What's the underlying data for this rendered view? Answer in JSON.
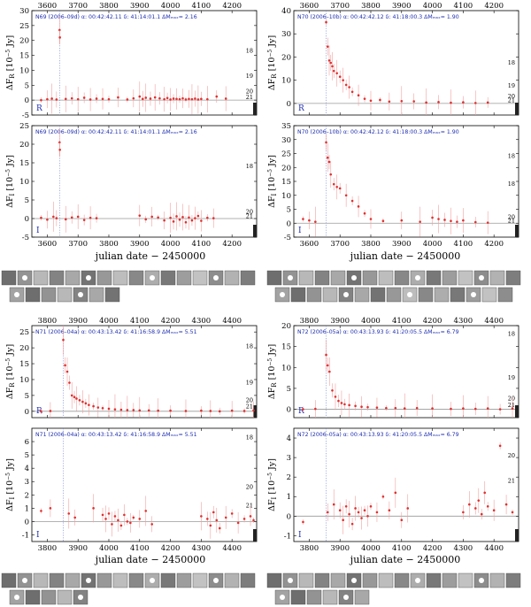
{
  "figure": {
    "x_axis_label": "julian date − 2450000",
    "y_axis_label_R_main": "ΔF",
    "y_axis_label_R_sub": "R",
    "y_axis_label_I_main": "ΔF",
    "y_axis_label_I_sub": "I",
    "y_axis_unit": "[10",
    "y_axis_unit_exp": "−5",
    "y_axis_unit_end": " Jy]",
    "colors": {
      "points": "#e03030",
      "info_text": "#1f2fb0",
      "axis": "#000000",
      "zero_line": "#999999"
    }
  },
  "chart_data": [
    {
      "id": "N69-R",
      "type": "scatter",
      "band": "R",
      "info": "N69 (2006–09d)   α: 00:42:42.11  δ: 41:14:01.1   ΔMₘₐₓ= 2.16",
      "xlim": [
        3550,
        4280
      ],
      "ylim": [
        -5,
        30
      ],
      "xticks": [
        3600,
        3700,
        3800,
        3900,
        4000,
        4100,
        4200
      ],
      "xticklabels_top": [
        "3600",
        "3700",
        "3800",
        "3900",
        "4000",
        "4100",
        "4200"
      ],
      "yticks": [
        -5,
        0,
        5,
        10,
        15,
        20,
        25,
        30
      ],
      "mag_labels": [
        {
          "y": 16.5,
          "t": "18"
        },
        {
          "y": 8.0,
          "t": "19"
        },
        {
          "y": 2.8,
          "t": "20"
        },
        {
          "y": 1.0,
          "t": "21"
        }
      ],
      "marker_x": 3640,
      "x": [
        3580,
        3600,
        3615,
        3630,
        3640,
        3641,
        3660,
        3680,
        3700,
        3720,
        3740,
        3760,
        3780,
        3800,
        3830,
        3860,
        3880,
        3900,
        3910,
        3920,
        3935,
        3950,
        3965,
        3980,
        3990,
        4000,
        4010,
        4020,
        4030,
        4040,
        4050,
        4060,
        4070,
        4080,
        4090,
        4100,
        4120,
        4150,
        4180
      ],
      "y": [
        0.0,
        0.3,
        0.5,
        0.2,
        23.5,
        21.0,
        0.4,
        0.6,
        0.3,
        0.8,
        0.2,
        0.5,
        0.4,
        0.3,
        0.9,
        0.2,
        0.6,
        1.2,
        0.4,
        0.8,
        0.5,
        0.9,
        0.6,
        0.3,
        0.7,
        0.2,
        0.5,
        0.4,
        0.3,
        0.6,
        0.2,
        0.4,
        0.3,
        0.5,
        0.2,
        0.4,
        0.3,
        1.2,
        0.5
      ]
    },
    {
      "id": "N70-R",
      "type": "scatter",
      "band": "R",
      "info": "N70 (2006–10b)   α: 00:42:42.12  δ: 41:18:00.3   ΔMₘₐₓ= 1.90",
      "xlim": [
        3550,
        4280
      ],
      "ylim": [
        -5,
        40
      ],
      "xticks": [
        3600,
        3700,
        3800,
        3900,
        4000,
        4100,
        4200
      ],
      "xticklabels_top": [
        "3600",
        "3700",
        "3800",
        "3900",
        "4000",
        "4100",
        "4200"
      ],
      "yticks": [
        0,
        10,
        20,
        30,
        40
      ],
      "mag_labels": [
        {
          "y": 17.5,
          "t": "18"
        },
        {
          "y": 7.5,
          "t": "19"
        },
        {
          "y": 3.0,
          "t": "20"
        },
        {
          "y": 1.2,
          "t": "21"
        }
      ],
      "marker_x": 3655,
      "x": [
        3655,
        3660,
        3665,
        3670,
        3675,
        3680,
        3690,
        3700,
        3710,
        3720,
        3730,
        3740,
        3760,
        3780,
        3800,
        3830,
        3860,
        3900,
        3940,
        3980,
        4020,
        4060,
        4100,
        4140,
        4180
      ],
      "y": [
        35.0,
        24.5,
        18.5,
        17.5,
        16.0,
        14.0,
        13.0,
        11.5,
        10.0,
        8.0,
        7.0,
        5.0,
        3.5,
        2.0,
        1.2,
        1.5,
        0.8,
        1.0,
        0.9,
        0.4,
        0.6,
        0.3,
        0.5,
        0.2,
        0.4
      ]
    },
    {
      "id": "N69-I",
      "type": "scatter",
      "band": "I",
      "info": "N69 (2006–09d)   α: 00:42:42.11  δ: 41:14:01.1   ΔMₘₐₓ= 2.16",
      "xlim": [
        3550,
        4280
      ],
      "ylim": [
        -5,
        25
      ],
      "xticks": [
        3600,
        3700,
        3800,
        3900,
        4000,
        4100,
        4200
      ],
      "xticklabels_bottom": [
        "3600",
        "3700",
        "3800",
        "3900",
        "4000",
        "4100",
        "4200"
      ],
      "yticks": [
        -5,
        0,
        5,
        10,
        15,
        20,
        25
      ],
      "mag_labels": [
        {
          "y": 14.0,
          "t": "18"
        },
        {
          "y": 1.8,
          "t": "20"
        },
        {
          "y": 0.6,
          "t": "21"
        }
      ],
      "marker_x": 3640,
      "x": [
        3580,
        3600,
        3620,
        3630,
        3640,
        3641,
        3660,
        3680,
        3700,
        3720,
        3740,
        3760,
        3900,
        3920,
        3940,
        3960,
        3980,
        4000,
        4010,
        4020,
        4030,
        4040,
        4050,
        4060,
        4070,
        4080,
        4090,
        4100,
        4120,
        4140
      ],
      "y": [
        0.2,
        -0.3,
        0.5,
        0.1,
        20.5,
        18.5,
        -0.2,
        0.3,
        0.5,
        -0.4,
        0.2,
        0.1,
        0.8,
        -0.2,
        0.5,
        0.3,
        -0.5,
        0.2,
        -0.8,
        0.6,
        -0.3,
        0.4,
        -1.0,
        0.3,
        -0.5,
        0.1,
        0.7,
        -0.6,
        0.2,
        0.1
      ]
    },
    {
      "id": "N70-I",
      "type": "scatter",
      "band": "I",
      "info": "N70 (2006–10b)   α: 00:42:42.12  δ: 41:18:00.3   ΔMₘₐₓ= 1.90",
      "xlim": [
        3550,
        4280
      ],
      "ylim": [
        -5,
        35
      ],
      "xticks": [
        3600,
        3700,
        3800,
        3900,
        4000,
        4100,
        4200
      ],
      "xticklabels_bottom": [
        "3600",
        "3700",
        "3800",
        "3900",
        "4000",
        "4100",
        "4200"
      ],
      "yticks": [
        -5,
        0,
        5,
        10,
        15,
        20,
        25,
        30,
        35
      ],
      "mag_labels": [
        {
          "y": 24.0,
          "t": "18"
        },
        {
          "y": 14.0,
          "t": "18"
        },
        {
          "y": 2.2,
          "t": "20"
        },
        {
          "y": 0.8,
          "t": "21"
        }
      ],
      "marker_x": 3655,
      "x": [
        3580,
        3600,
        3620,
        3655,
        3660,
        3665,
        3670,
        3680,
        3690,
        3700,
        3720,
        3740,
        3760,
        3780,
        3800,
        3840,
        3900,
        3960,
        4000,
        4020,
        4040,
        4060,
        4080,
        4100,
        4140,
        4180
      ],
      "y": [
        1.5,
        1.0,
        0.5,
        29.0,
        23.5,
        22.0,
        17.5,
        14.0,
        13.0,
        12.5,
        10.0,
        8.0,
        6.0,
        3.5,
        1.5,
        0.8,
        1.0,
        0.5,
        2.0,
        1.5,
        1.2,
        0.8,
        0.5,
        1.0,
        0.4,
        0.2
      ]
    },
    {
      "id": "N71-R",
      "type": "scatter",
      "band": "R",
      "info": "N71 (2006–04a)   α: 00:43:13.42  δ: 41:16:58.9   ΔMₘₐₓ= 5.51",
      "xlim": [
        3750,
        4480
      ],
      "ylim": [
        -2,
        27
      ],
      "xticks": [
        3800,
        3900,
        4000,
        4100,
        4200,
        4300,
        4400
      ],
      "xticklabels_top": [
        "3800",
        "3900",
        "4000",
        "4100",
        "4200",
        "4300",
        "4400"
      ],
      "yticks": [
        0,
        5,
        10,
        15,
        20,
        25
      ],
      "mag_labels": [
        {
          "y": 20.5,
          "t": "18"
        },
        {
          "y": 9.0,
          "t": "19"
        },
        {
          "y": 3.5,
          "t": "20"
        },
        {
          "y": 1.5,
          "t": "21"
        }
      ],
      "marker_x": 3852,
      "x": [
        3780,
        3810,
        3852,
        3858,
        3865,
        3872,
        3880,
        3888,
        3895,
        3905,
        3915,
        3925,
        3935,
        3950,
        3965,
        3980,
        4000,
        4020,
        4040,
        4060,
        4080,
        4100,
        4130,
        4160,
        4200,
        4250,
        4300,
        4330,
        4360,
        4400,
        4440,
        4470
      ],
      "y": [
        0.0,
        0.1,
        22.5,
        14.5,
        12.5,
        9.0,
        5.0,
        4.5,
        4.0,
        3.5,
        3.0,
        2.5,
        2.0,
        1.6,
        1.2,
        1.0,
        0.8,
        0.6,
        0.5,
        0.4,
        0.4,
        0.3,
        0.3,
        0.2,
        0.2,
        0.1,
        0.2,
        0.1,
        0.0,
        0.2,
        0.1,
        0.3
      ]
    },
    {
      "id": "N72-R",
      "type": "scatter",
      "band": "R",
      "info": "N72 (2006–05a)   α: 00:43:13.93  δ: 41:20:05.5   ΔMₘₐₓ= 6.79",
      "xlim": [
        3750,
        4480
      ],
      "ylim": [
        -2,
        20
      ],
      "xticks": [
        3800,
        3900,
        4000,
        4100,
        4200,
        4300,
        4400
      ],
      "xticklabels_top": [
        "3800",
        "3900",
        "4000",
        "4100",
        "4200",
        "4300",
        "4400"
      ],
      "yticks": [
        0,
        5,
        10,
        15,
        20
      ],
      "mag_labels": [
        {
          "y": 18.0,
          "t": "18"
        },
        {
          "y": 7.5,
          "t": "19"
        },
        {
          "y": 2.6,
          "t": "20"
        },
        {
          "y": 1.0,
          "t": "21"
        }
      ],
      "marker_x": 3855,
      "x": [
        3780,
        3820,
        3855,
        3860,
        3866,
        3875,
        3885,
        3895,
        3905,
        3915,
        3930,
        3950,
        3970,
        3990,
        4020,
        4050,
        4080,
        4110,
        4150,
        4200,
        4260,
        4300,
        4340,
        4380,
        4420,
        4460
      ],
      "y": [
        0.0,
        0.1,
        13.0,
        10.5,
        9.0,
        4.5,
        3.0,
        2.0,
        1.5,
        1.2,
        1.0,
        0.8,
        0.6,
        0.5,
        0.4,
        0.3,
        0.3,
        0.2,
        0.3,
        0.2,
        0.1,
        0.2,
        0.1,
        0.2,
        0.0,
        0.2
      ]
    },
    {
      "id": "N71-I",
      "type": "scatter",
      "band": "I",
      "info": "N71 (2006–04a)   α: 00:43:13.42  δ: 41:16:58.9   ΔMₘₐₓ= 5.51",
      "xlim": [
        3750,
        4480
      ],
      "ylim": [
        -1.5,
        7
      ],
      "xticks": [
        3800,
        3900,
        4000,
        4100,
        4200,
        4300,
        4400
      ],
      "xticklabels_bottom": [
        "3800",
        "3900",
        "4000",
        "4100",
        "4200",
        "4300",
        "4400"
      ],
      "yticks": [
        -1,
        0,
        1,
        2,
        3,
        4,
        5,
        6
      ],
      "mag_labels": [
        {
          "y": 6.3,
          "t": "18"
        },
        {
          "y": 2.6,
          "t": "20"
        },
        {
          "y": 1.2,
          "t": "21"
        }
      ],
      "marker_x": 3852,
      "x": [
        3780,
        3810,
        3870,
        3890,
        3950,
        3980,
        3990,
        4000,
        4010,
        4020,
        4030,
        4040,
        4050,
        4060,
        4070,
        4080,
        4100,
        4120,
        4140,
        4300,
        4320,
        4330,
        4340,
        4350,
        4360,
        4380,
        4400,
        4420,
        4440,
        4460,
        4470
      ],
      "y": [
        0.8,
        1.0,
        0.6,
        0.3,
        1.0,
        0.5,
        0.2,
        0.6,
        -0.2,
        0.4,
        0.1,
        -0.3,
        0.5,
        0.0,
        -0.1,
        0.3,
        0.2,
        0.8,
        -0.2,
        0.4,
        0.2,
        -0.3,
        0.7,
        0.1,
        -0.5,
        0.3,
        0.6,
        -0.1,
        0.2,
        0.4,
        0.1
      ]
    },
    {
      "id": "N72-I",
      "type": "scatter",
      "band": "I",
      "info": "N72 (2006–05a)   α: 00:43:13.93  δ: 41:20:05.5   ΔMₘₐₓ= 6.79",
      "xlim": [
        3750,
        4480
      ],
      "ylim": [
        -1.3,
        4.5
      ],
      "xticks": [
        3800,
        3900,
        4000,
        4100,
        4200,
        4300,
        4400
      ],
      "xticklabels_bottom": [
        "3800",
        "3900",
        "4000",
        "4100",
        "4200",
        "4300",
        "4400"
      ],
      "yticks": [
        -1,
        0,
        1,
        2,
        3,
        4
      ],
      "mag_labels": [
        {
          "y": 3.1,
          "t": "20"
        },
        {
          "y": 1.8,
          "t": "21"
        }
      ],
      "marker_x": 3855,
      "x": [
        3780,
        3860,
        3880,
        3900,
        3910,
        3920,
        3930,
        3940,
        3950,
        3960,
        3970,
        3980,
        3990,
        4000,
        4020,
        4040,
        4060,
        4080,
        4100,
        4120,
        4300,
        4320,
        4340,
        4350,
        4360,
        4370,
        4380,
        4400,
        4420,
        4440,
        4460
      ],
      "y": [
        -0.3,
        0.2,
        0.6,
        0.3,
        -0.2,
        0.5,
        0.1,
        -0.4,
        0.4,
        0.2,
        -0.1,
        0.3,
        0.0,
        0.5,
        0.2,
        1.0,
        0.3,
        1.2,
        -0.2,
        0.4,
        0.2,
        0.6,
        0.4,
        0.8,
        0.1,
        1.2,
        0.5,
        0.3,
        3.6,
        0.6,
        0.2
      ]
    }
  ]
}
